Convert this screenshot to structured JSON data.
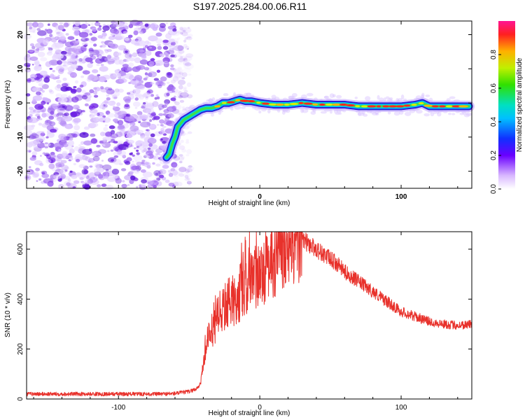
{
  "title": "S197.2025.284.00.06.R11",
  "chart_data": [
    {
      "type": "heatmap",
      "name": "spectrogram",
      "xlabel": "Height of straight line (km)",
      "ylabel": "Frequency (Hz)",
      "xlim": [
        -165,
        150
      ],
      "ylim": [
        -25,
        24
      ],
      "xticks": [
        "-100",
        "0",
        "100"
      ],
      "yticks": [
        "20",
        "10",
        "0",
        "-10",
        "-20"
      ],
      "noise_region_x": [
        -165,
        -55
      ],
      "signal_path": {
        "x": [
          -66,
          -64,
          -62,
          -60,
          -58,
          -56,
          -54,
          -50,
          -46,
          -42,
          -38,
          -34,
          -30,
          -26,
          -22,
          -18,
          -14,
          -10,
          -6,
          0,
          10,
          20,
          30,
          40,
          50,
          60,
          70,
          80,
          90,
          95,
          100,
          110,
          115,
          120,
          130,
          140,
          148
        ],
        "y": [
          -16,
          -15,
          -12,
          -10,
          -7,
          -6,
          -5,
          -4,
          -3,
          -2,
          -1.5,
          -1.5,
          -1,
          0,
          0,
          0.5,
          1,
          0.5,
          0.5,
          0,
          -0.5,
          -0.5,
          0,
          -0.5,
          -0.5,
          -0.5,
          -1,
          -1,
          -1,
          -1,
          -1,
          -0.5,
          0,
          -1,
          -1,
          -1,
          -1
        ]
      },
      "colorbar": {
        "label": "Normalized spectral amplitude",
        "ticks": [
          "0.0",
          "0.2",
          "0.4",
          "0.6",
          "0.8"
        ],
        "range": [
          0,
          1
        ]
      }
    },
    {
      "type": "line",
      "name": "snr",
      "xlabel": "Height of straight line (km)",
      "ylabel": "SNR (10 * v/v)",
      "xlim": [
        -165,
        150
      ],
      "ylim": [
        0,
        670
      ],
      "xticks": [
        "-100",
        "0",
        "100"
      ],
      "yticks": [
        "0",
        "200",
        "400",
        "600"
      ],
      "color": "#e8312b",
      "series": [
        {
          "name": "SNR",
          "x": [
            -165,
            -150,
            -130,
            -110,
            -90,
            -70,
            -60,
            -50,
            -45,
            -42,
            -40,
            -38,
            -36,
            -34,
            -32,
            -30,
            -28,
            -26,
            -24,
            -22,
            -20,
            -15,
            -10,
            -5,
            0,
            5,
            10,
            15,
            20,
            25,
            30,
            35,
            40,
            45,
            50,
            55,
            60,
            70,
            80,
            90,
            100,
            110,
            120,
            130,
            140,
            150
          ],
          "y": [
            20,
            20,
            20,
            20,
            20,
            20,
            22,
            30,
            40,
            60,
            150,
            210,
            250,
            270,
            290,
            320,
            340,
            360,
            370,
            380,
            390,
            420,
            450,
            480,
            500,
            530,
            550,
            580,
            610,
            630,
            640,
            620,
            600,
            580,
            560,
            540,
            510,
            470,
            430,
            390,
            350,
            330,
            310,
            300,
            295,
            300
          ]
        }
      ]
    }
  ]
}
